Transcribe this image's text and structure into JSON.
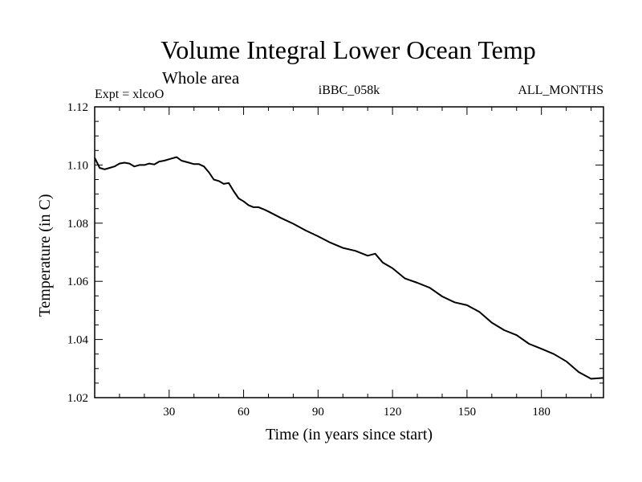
{
  "chart_data": {
    "type": "line",
    "title": "Volume Integral Lower Ocean Temp",
    "subtitle": "Whole area",
    "left_label": "Expt = xlcoO",
    "center_label": "iBBC_058k",
    "right_label": "ALL_MONTHS",
    "xlabel": "Time (in years since start)",
    "ylabel": "Temperature (in C)",
    "xlim": [
      0,
      205
    ],
    "ylim": [
      1.02,
      1.12
    ],
    "x_ticks": [
      30,
      60,
      90,
      120,
      150,
      180
    ],
    "x_tick_labels": [
      "30",
      "60",
      "90",
      "120",
      "150",
      "180"
    ],
    "y_ticks": [
      1.02,
      1.04,
      1.06,
      1.08,
      1.1,
      1.12
    ],
    "y_tick_labels": [
      "1.02",
      "1.04",
      "1.06",
      "1.08",
      "1.10",
      "1.12"
    ],
    "series": [
      {
        "name": "Volume Integral Lower Ocean Temp",
        "x": [
          0,
          2,
          4,
          6,
          8,
          10,
          12,
          14,
          16,
          18,
          20,
          22,
          24,
          26,
          28,
          30,
          32,
          33,
          35,
          38,
          40,
          42,
          44,
          46,
          48,
          50,
          52,
          54,
          56,
          58,
          60,
          62,
          64,
          66,
          68,
          70,
          75,
          80,
          85,
          90,
          95,
          100,
          105,
          110,
          113,
          116,
          120,
          125,
          130,
          135,
          140,
          145,
          150,
          155,
          160,
          165,
          170,
          175,
          180,
          185,
          190,
          195,
          200,
          205
        ],
        "values": [
          1.1025,
          1.099,
          1.0985,
          1.099,
          1.0995,
          1.1005,
          1.1008,
          1.1005,
          1.0995,
          1.1,
          1.1,
          1.1005,
          1.1002,
          1.1012,
          1.1015,
          1.102,
          1.1025,
          1.1027,
          1.1015,
          1.1008,
          1.1003,
          1.1003,
          1.0995,
          1.0975,
          1.095,
          1.0945,
          1.0935,
          1.0938,
          1.091,
          1.0885,
          1.0875,
          1.0862,
          1.0855,
          1.0855,
          1.0848,
          1.084,
          1.0818,
          1.0798,
          1.0775,
          1.0755,
          1.0733,
          1.0715,
          1.0705,
          1.0688,
          1.0695,
          1.0665,
          1.0645,
          1.061,
          1.0595,
          1.0578,
          1.0548,
          1.0528,
          1.0518,
          1.0495,
          1.0458,
          1.0432,
          1.0415,
          1.0385,
          1.0368,
          1.035,
          1.0325,
          1.0288,
          1.0265,
          1.0268
        ]
      }
    ]
  }
}
